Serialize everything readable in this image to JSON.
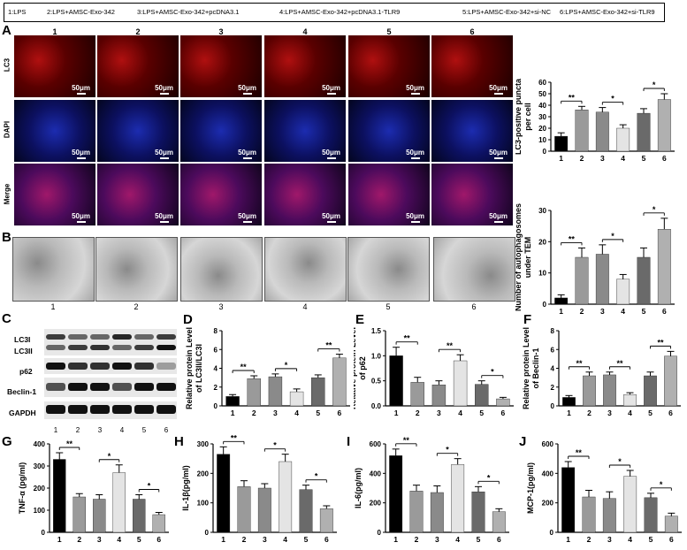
{
  "legend": [
    "1:LPS",
    "2:LPS+AMSC-Exo-342",
    "3:LPS+AMSC-Exo-342+pcDNA3.1",
    "4:LPS+AMSC-Exo-342+pcDNA3.1-TLR9",
    "5:LPS+AMSC-Exo-342+si-NC",
    "6:LPS+AMSC-Exo-342+si-TLR9"
  ],
  "panelA": {
    "label": "A",
    "columns": [
      "1",
      "2",
      "3",
      "4",
      "5",
      "6"
    ],
    "rows": [
      "LC3",
      "DAPI",
      "Merge"
    ],
    "scale": "50μm"
  },
  "panelB": {
    "label": "B",
    "columns": [
      "1",
      "2",
      "3",
      "4",
      "5",
      "6"
    ]
  },
  "panelC": {
    "label": "C",
    "bands": [
      "LC3I",
      "LC3II",
      "p62",
      "Beclin-1",
      "GAPDH"
    ],
    "lanes": [
      "1",
      "2",
      "3",
      "4",
      "5",
      "6"
    ]
  },
  "colors": {
    "bars": [
      "#000000",
      "#9a9a9a",
      "#8a8a8a",
      "#e4e4e4",
      "#6a6a6a",
      "#b0b0b0"
    ]
  },
  "chart_data": [
    {
      "id": "lc3",
      "type": "bar",
      "label": "",
      "categories": [
        "1",
        "2",
        "3",
        "4",
        "5",
        "6"
      ],
      "values": [
        13,
        36,
        34,
        20,
        33,
        45
      ],
      "errors": [
        3,
        3,
        4,
        3,
        4,
        5
      ],
      "ylabel": "LC3-positive puncta per cell",
      "ylim": [
        0,
        60
      ],
      "yticks": [
        0,
        10,
        20,
        30,
        40,
        50,
        60
      ],
      "sig": [
        [
          1,
          2,
          "**"
        ],
        [
          3,
          4,
          "*"
        ],
        [
          5,
          6,
          "*"
        ]
      ]
    },
    {
      "id": "tem",
      "type": "bar",
      "label": "",
      "categories": [
        "1",
        "2",
        "3",
        "4",
        "5",
        "6"
      ],
      "values": [
        2,
        15,
        16,
        8,
        15,
        24
      ],
      "errors": [
        1,
        3,
        3,
        1.5,
        3,
        3.5
      ],
      "ylabel": "Number of autophagosomes under TEM",
      "ylim": [
        0,
        30
      ],
      "yticks": [
        0,
        10,
        20,
        30
      ],
      "sig": [
        [
          1,
          2,
          "**"
        ],
        [
          3,
          4,
          "*"
        ],
        [
          5,
          6,
          "*"
        ]
      ]
    },
    {
      "id": "d",
      "type": "bar",
      "label": "D",
      "categories": [
        "1",
        "2",
        "3",
        "4",
        "5",
        "6"
      ],
      "values": [
        1.0,
        2.9,
        3.1,
        1.5,
        3.0,
        5.1
      ],
      "errors": [
        0.2,
        0.3,
        0.3,
        0.3,
        0.3,
        0.4
      ],
      "ylabel": "Relative protein Level of LC3II/LC3I",
      "ylim": [
        0,
        8
      ],
      "yticks": [
        0,
        2,
        4,
        6,
        8
      ],
      "sig": [
        [
          1,
          2,
          "**"
        ],
        [
          3,
          4,
          "*"
        ],
        [
          5,
          6,
          "**"
        ]
      ]
    },
    {
      "id": "e",
      "type": "bar",
      "label": "E",
      "categories": [
        "1",
        "2",
        "3",
        "4",
        "5",
        "6"
      ],
      "values": [
        1.0,
        0.47,
        0.42,
        0.9,
        0.43,
        0.14
      ],
      "errors": [
        0.17,
        0.1,
        0.08,
        0.12,
        0.07,
        0.03
      ],
      "ylabel": "Relative protein Level of p62",
      "ylim": [
        0,
        1.5
      ],
      "yticks": [
        0.0,
        0.5,
        1.0,
        1.5
      ],
      "sig": [
        [
          1,
          2,
          "**"
        ],
        [
          3,
          4,
          "**"
        ],
        [
          5,
          6,
          "*"
        ]
      ]
    },
    {
      "id": "f",
      "type": "bar",
      "label": "F",
      "categories": [
        "1",
        "2",
        "3",
        "4",
        "5",
        "6"
      ],
      "values": [
        0.9,
        3.2,
        3.3,
        1.2,
        3.2,
        5.3
      ],
      "errors": [
        0.2,
        0.4,
        0.3,
        0.2,
        0.4,
        0.5
      ],
      "ylabel": "Relative protein Level of Beclin-1",
      "ylim": [
        0,
        8
      ],
      "yticks": [
        0,
        2,
        4,
        6,
        8
      ],
      "sig": [
        [
          1,
          2,
          "**"
        ],
        [
          3,
          4,
          "**"
        ],
        [
          5,
          6,
          "**"
        ]
      ]
    },
    {
      "id": "g",
      "type": "bar",
      "label": "G",
      "categories": [
        "1",
        "2",
        "3",
        "4",
        "5",
        "6"
      ],
      "values": [
        330,
        160,
        150,
        270,
        150,
        80
      ],
      "errors": [
        30,
        15,
        20,
        35,
        20,
        10
      ],
      "ylabel": "TNF-α (pg/ml)",
      "ylim": [
        0,
        400
      ],
      "yticks": [
        0,
        100,
        200,
        300,
        400
      ],
      "sig": [
        [
          1,
          2,
          "**"
        ],
        [
          3,
          4,
          "*"
        ],
        [
          5,
          6,
          "*"
        ]
      ]
    },
    {
      "id": "h",
      "type": "bar",
      "label": "H",
      "categories": [
        "1",
        "2",
        "3",
        "4",
        "5",
        "6"
      ],
      "values": [
        265,
        155,
        150,
        240,
        145,
        80
      ],
      "errors": [
        25,
        20,
        15,
        25,
        15,
        10
      ],
      "ylabel": "IL-1β(pg/ml)",
      "ylim": [
        0,
        300
      ],
      "yticks": [
        0,
        100,
        200,
        300
      ],
      "sig": [
        [
          1,
          2,
          "**"
        ],
        [
          3,
          4,
          "*"
        ],
        [
          5,
          6,
          "*"
        ]
      ]
    },
    {
      "id": "i",
      "type": "bar",
      "label": "I",
      "categories": [
        "1",
        "2",
        "3",
        "4",
        "5",
        "6"
      ],
      "values": [
        520,
        280,
        270,
        460,
        275,
        140
      ],
      "errors": [
        45,
        40,
        45,
        40,
        35,
        20
      ],
      "ylabel": "IL-6(pg/ml)",
      "ylim": [
        0,
        600
      ],
      "yticks": [
        0,
        200,
        400,
        600
      ],
      "sig": [
        [
          1,
          2,
          "**"
        ],
        [
          3,
          4,
          "*"
        ],
        [
          5,
          6,
          "*"
        ]
      ]
    },
    {
      "id": "j",
      "type": "bar",
      "label": "J",
      "categories": [
        "1",
        "2",
        "3",
        "4",
        "5",
        "6"
      ],
      "values": [
        440,
        240,
        230,
        380,
        235,
        110
      ],
      "errors": [
        40,
        45,
        45,
        40,
        30,
        20
      ],
      "ylabel": "MCP-1(pg/ml)",
      "ylim": [
        0,
        600
      ],
      "yticks": [
        0,
        200,
        400,
        600
      ],
      "sig": [
        [
          1,
          2,
          "**"
        ],
        [
          3,
          4,
          "*"
        ],
        [
          5,
          6,
          "*"
        ]
      ]
    }
  ]
}
